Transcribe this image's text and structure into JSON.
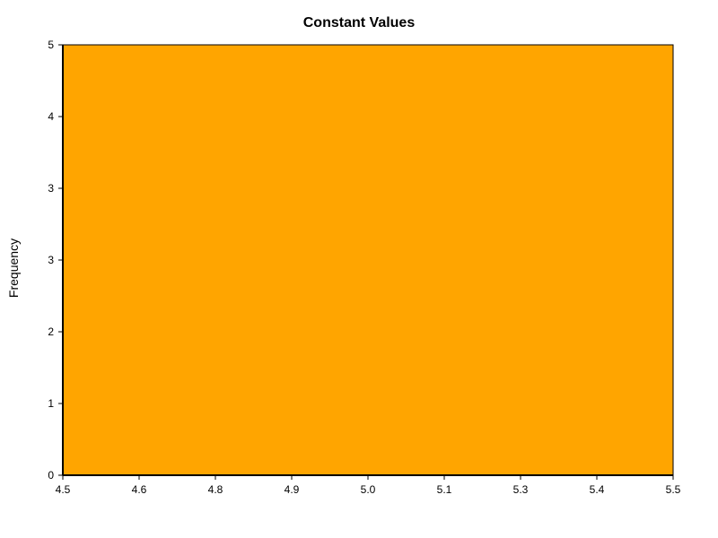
{
  "chart_data": {
    "type": "bar",
    "title": "Constant Values",
    "xlabel": "",
    "ylabel": "Frequency",
    "bins": [
      {
        "x0": 4.5,
        "x1": 5.5,
        "value": 5
      }
    ],
    "xlim": [
      4.5,
      5.5
    ],
    "ylim": [
      0,
      5
    ],
    "x_ticks": [
      {
        "value": 4.5,
        "label": "4.5"
      },
      {
        "value": 4.625,
        "label": "4.6"
      },
      {
        "value": 4.75,
        "label": "4.8"
      },
      {
        "value": 4.875,
        "label": "4.9"
      },
      {
        "value": 5.0,
        "label": "5.0"
      },
      {
        "value": 5.125,
        "label": "5.1"
      },
      {
        "value": 5.25,
        "label": "5.3"
      },
      {
        "value": 5.375,
        "label": "5.4"
      },
      {
        "value": 5.5,
        "label": "5.5"
      }
    ],
    "y_ticks": [
      {
        "value": 0,
        "label": "0"
      },
      {
        "value": 0.8333,
        "label": "1"
      },
      {
        "value": 1.6667,
        "label": "2"
      },
      {
        "value": 2.5,
        "label": "3"
      },
      {
        "value": 3.3333,
        "label": "3"
      },
      {
        "value": 4.1667,
        "label": "4"
      },
      {
        "value": 5,
        "label": "5"
      }
    ],
    "grid": false,
    "colors": {
      "bar": "#FFA500",
      "bar_edge": "#000000",
      "axis": "#000000"
    }
  }
}
